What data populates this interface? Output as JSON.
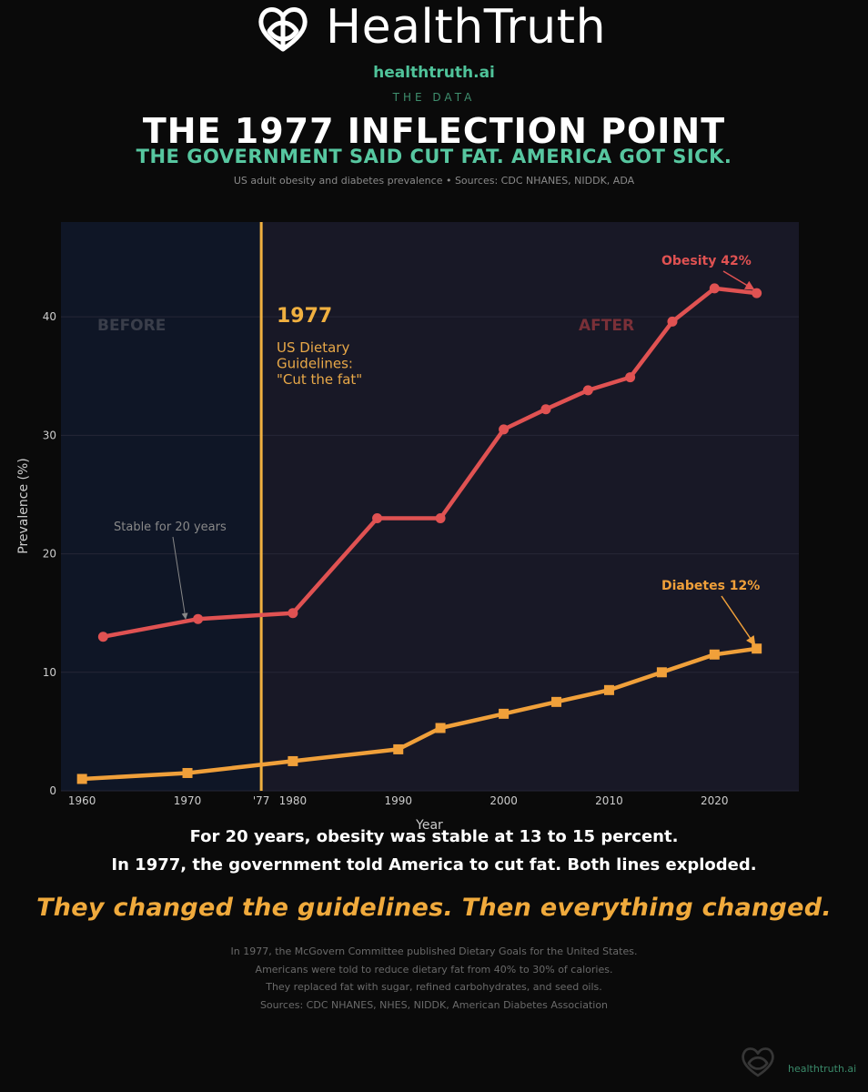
{
  "brand": {
    "name": "HealthTruth",
    "url": "healthtruth.ai",
    "section_label": "THE DATA",
    "accent_color": "#4fc39a"
  },
  "header": {
    "title": "THE 1977 INFLECTION POINT",
    "subtitle": "THE GOVERNMENT SAID CUT FAT. AMERICA GOT SICK.",
    "sources_line": "US adult obesity and diabetes prevalence  •  Sources: CDC NHANES, NIDDK, ADA"
  },
  "chart_data": {
    "type": "line",
    "xlabel": "Year",
    "ylabel": "Prevalence (%)",
    "xlim": [
      1958,
      2028
    ],
    "ylim": [
      0,
      48
    ],
    "x_ticks": [
      1960,
      1970,
      1980,
      1990,
      2000,
      2010,
      2020
    ],
    "x_tick_labels": [
      "1960",
      "1970",
      "1980",
      "1990",
      "2000",
      "2010",
      "2020"
    ],
    "y_ticks": [
      0,
      10,
      20,
      30,
      40
    ],
    "extra_x_tick": {
      "x": 1977,
      "label": "'77"
    },
    "grid": true,
    "legend": "none",
    "series": [
      {
        "name": "Obesity",
        "color": "#e05252",
        "marker": "circle",
        "x": [
          1962,
          1971,
          1980,
          1988,
          1994,
          2000,
          2004,
          2008,
          2012,
          2016,
          2020,
          2024
        ],
        "y": [
          13.0,
          14.5,
          15.0,
          23.0,
          23.0,
          30.5,
          32.2,
          33.8,
          34.9,
          39.6,
          42.4,
          42.0
        ]
      },
      {
        "name": "Diabetes",
        "color": "#f0a03a",
        "marker": "square",
        "x": [
          1960,
          1970,
          1980,
          1990,
          1994,
          2000,
          2005,
          2010,
          2015,
          2020,
          2024
        ],
        "y": [
          1.0,
          1.5,
          2.5,
          3.5,
          5.3,
          6.5,
          7.5,
          8.5,
          10.0,
          11.5,
          12.0
        ]
      }
    ],
    "regions": [
      {
        "label": "BEFORE",
        "from": 1958,
        "to": 1977,
        "color": "#0f1626",
        "label_color": "#3a3e4a"
      },
      {
        "label": "AFTER",
        "from": 1977,
        "to": 2028,
        "color": "#181826",
        "label_color": "#7a3038"
      }
    ],
    "vline": {
      "x": 1977,
      "color": "#f0b040",
      "label": "1977",
      "caption_lines": [
        "US Dietary",
        "Guidelines:",
        "\"Cut the fat\""
      ]
    },
    "annotations": [
      {
        "text": "Obesity 42%",
        "x": 2024,
        "y": 42.0,
        "color": "#e05252"
      },
      {
        "text": "Diabetes 12%",
        "x": 2024,
        "y": 12.0,
        "color": "#f0a03a"
      },
      {
        "text": "Stable for 20 years",
        "x": 1970,
        "y": 14.2,
        "color": "#888888"
      }
    ]
  },
  "summary": {
    "line1": "For 20 years, obesity was stable at 13 to 15 percent.",
    "line2": "In 1977, the government told America to cut fat. Both lines exploded."
  },
  "tagline": "They changed the guidelines. Then everything changed.",
  "footnote": [
    "In 1977, the McGovern Committee published Dietary Goals for the United States.",
    "Americans were told to reduce dietary fat from 40% to 30% of calories.",
    "They replaced fat with sugar, refined carbohydrates, and seed oils.",
    "Sources: CDC NHANES, NHES, NIDDK, American Diabetes Association"
  ],
  "footer": {
    "url": "healthtruth.ai"
  }
}
